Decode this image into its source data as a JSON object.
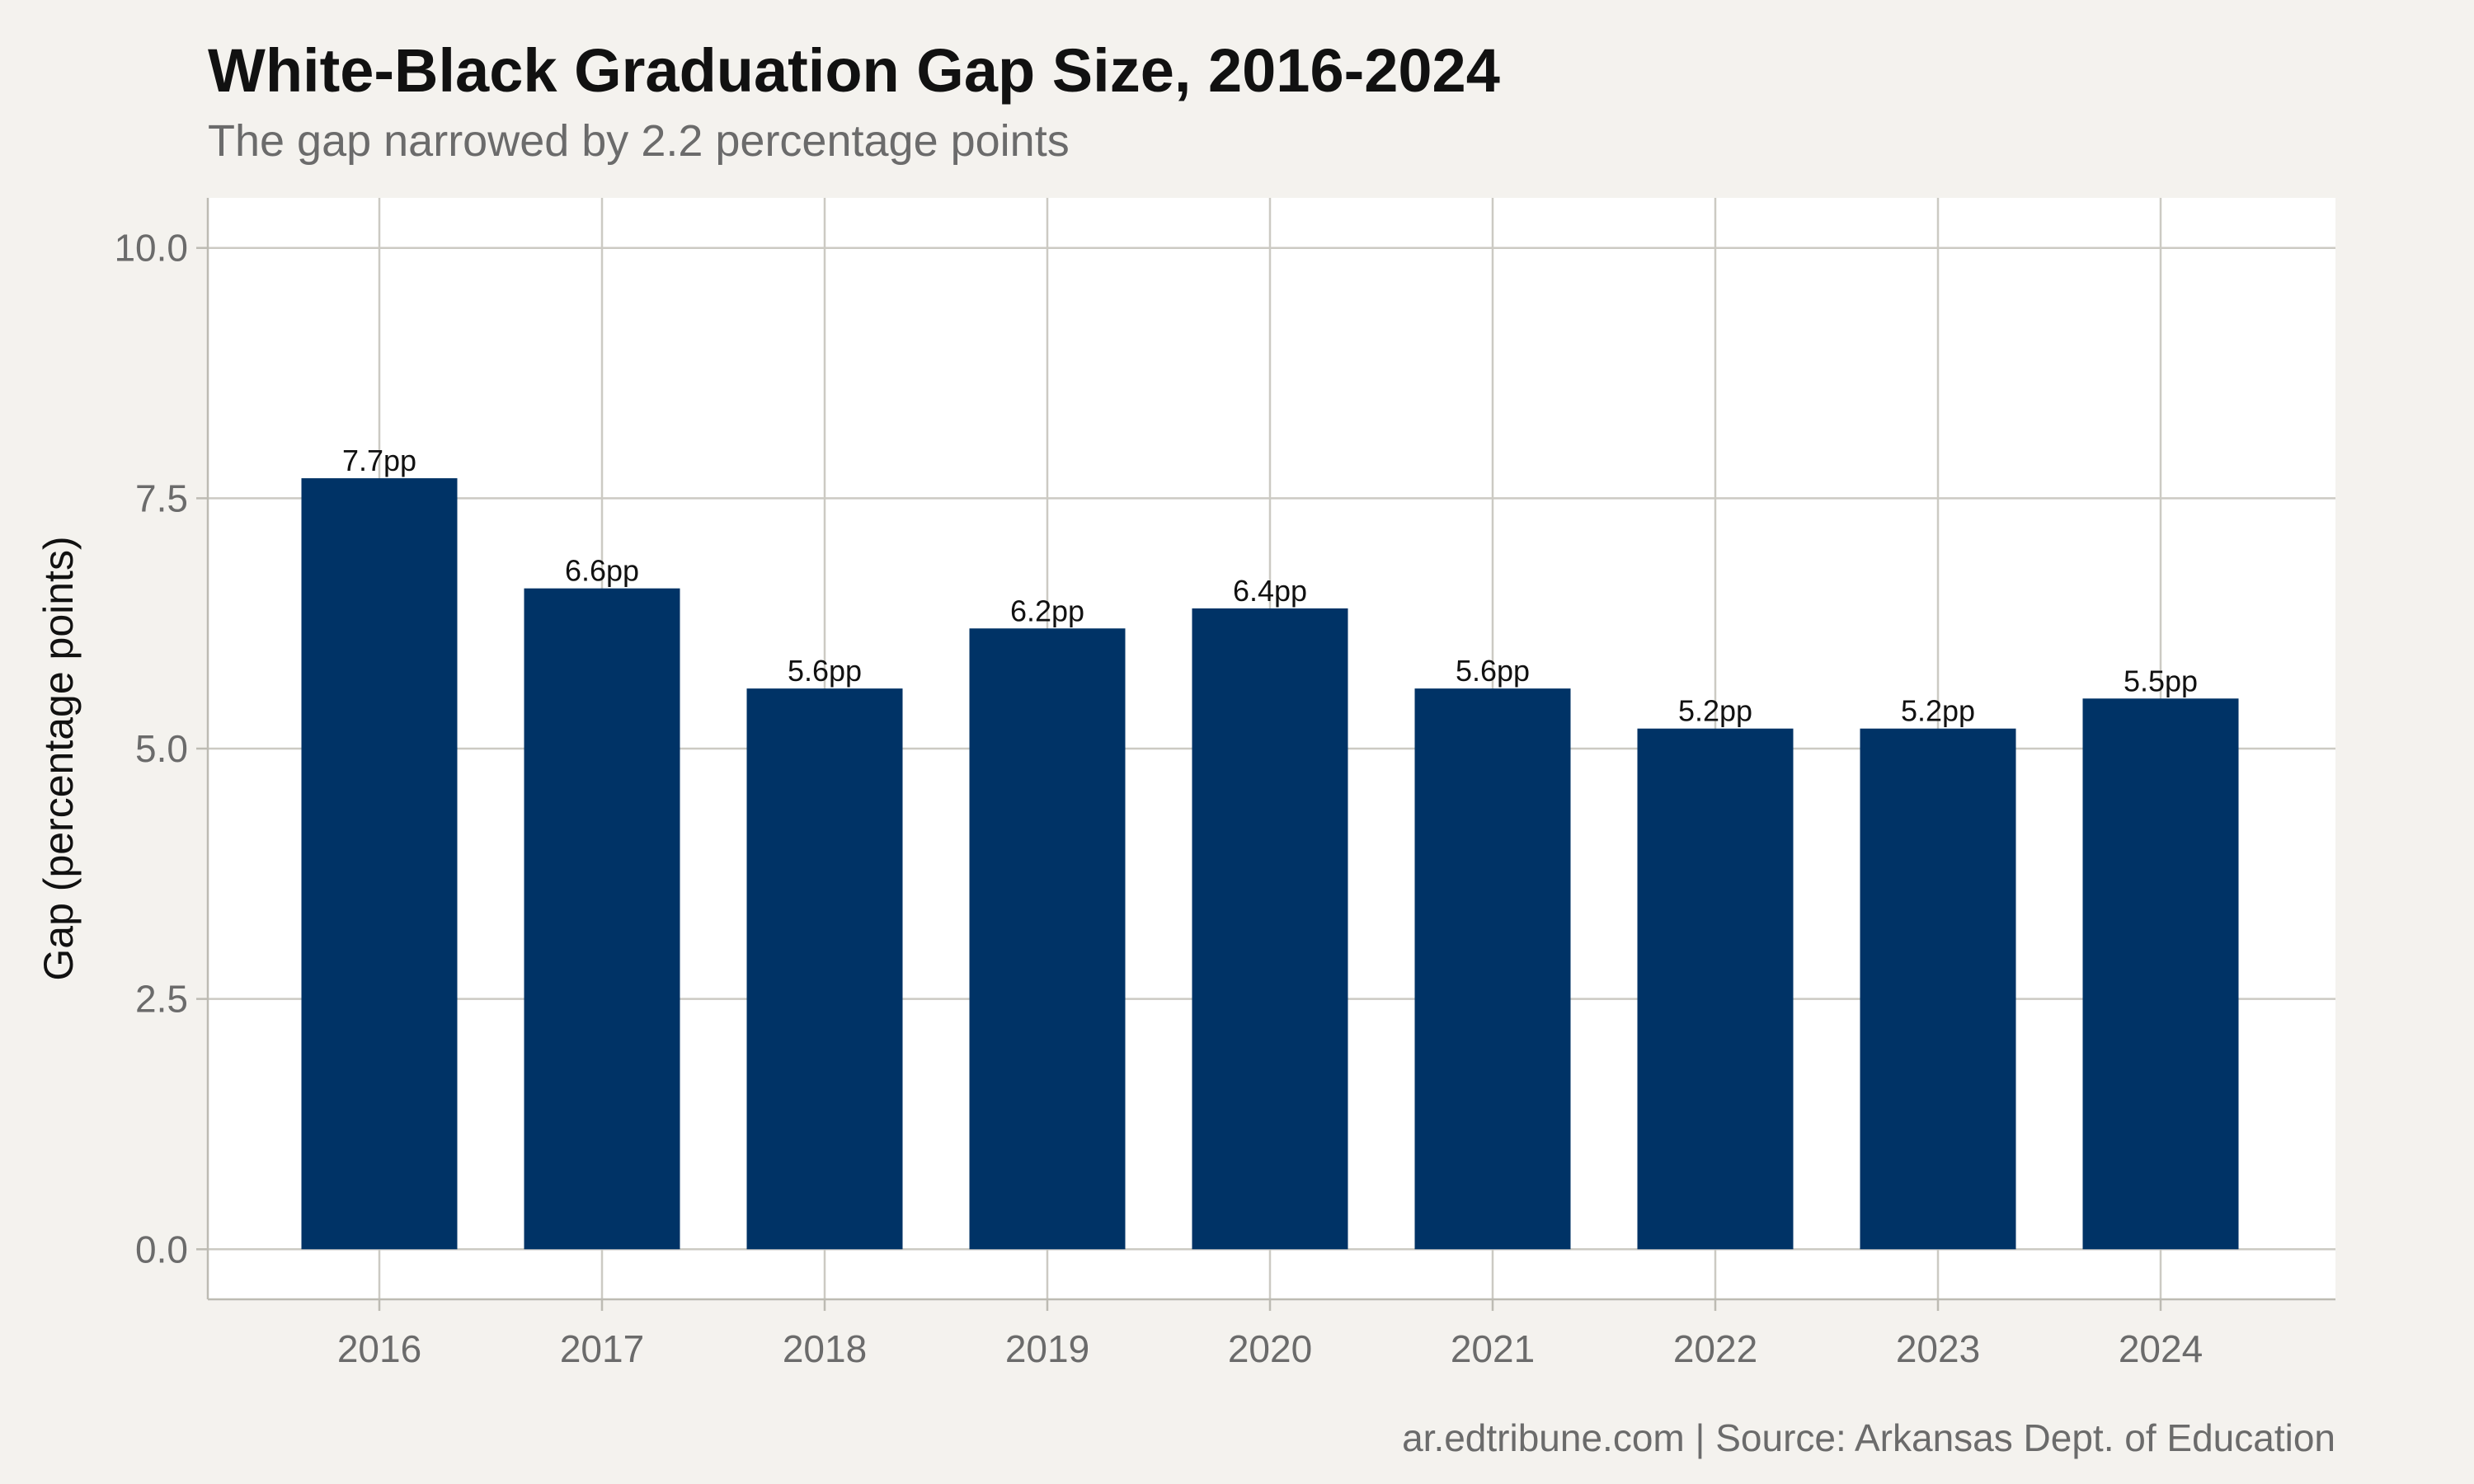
{
  "colors": {
    "background": "#f4f2ee",
    "panel": "#ffffff",
    "bar": "#003366",
    "grid": "#cccac3"
  },
  "chart_data": {
    "type": "bar",
    "title": "White-Black Graduation Gap Size, 2016-2024",
    "subtitle": "The gap narrowed by 2.2 percentage points",
    "caption": "ar.edtribune.com | Source: Arkansas Dept. of Education",
    "xlabel": "",
    "ylabel": "Gap (percentage points)",
    "categories": [
      "2016",
      "2017",
      "2018",
      "2019",
      "2020",
      "2021",
      "2022",
      "2023",
      "2024"
    ],
    "values": [
      7.7,
      6.6,
      5.6,
      6.2,
      6.4,
      5.6,
      5.2,
      5.2,
      5.5
    ],
    "data_labels": [
      "7.7pp",
      "6.6pp",
      "5.6pp",
      "6.2pp",
      "6.4pp",
      "5.6pp",
      "5.2pp",
      "5.2pp",
      "5.5pp"
    ],
    "ylim": [
      -0.5,
      10.5
    ],
    "yticks": [
      0.0,
      2.5,
      5.0,
      7.5,
      10.0
    ],
    "ytick_labels": [
      "0.0",
      "2.5",
      "5.0",
      "7.5",
      "10.0"
    ],
    "grid": true,
    "legend": "none"
  }
}
